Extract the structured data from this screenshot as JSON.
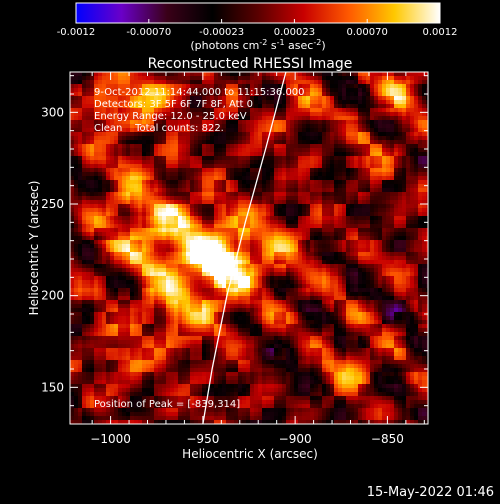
{
  "colorbar": {
    "ticks": [
      "-0.0012",
      "-0.00070",
      "-0.00023",
      "0.00023",
      "0.00070",
      "0.0012"
    ],
    "unit_label_parts": [
      "(photons cm",
      "-2",
      " s",
      "-1",
      " asec",
      "-2",
      ")"
    ],
    "colors": [
      "#0000ff",
      "#6a00c8",
      "#3a0018",
      "#000000",
      "#5a0000",
      "#c80000",
      "#ff5a00",
      "#ffc800",
      "#ffffff"
    ]
  },
  "footer": {
    "timestamp": "15-May-2022 01:46"
  },
  "chart_data": {
    "type": "heatmap",
    "title": "Reconstructed RHESSI Image",
    "xlabel": "Heliocentric X (arcsec)",
    "ylabel": "Heliocentric Y (arcsec)",
    "xlim": [
      -1022,
      -828
    ],
    "ylim": [
      130,
      322
    ],
    "xticks": [
      {
        "value": -1000,
        "label": "−1000"
      },
      {
        "value": -950,
        "label": "−950"
      },
      {
        "value": -900,
        "label": "−900"
      },
      {
        "value": -850,
        "label": "−850"
      }
    ],
    "yticks": [
      {
        "value": 150,
        "label": "150"
      },
      {
        "value": 200,
        "label": "200"
      },
      {
        "value": 250,
        "label": "250"
      },
      {
        "value": 300,
        "label": "300"
      }
    ],
    "value_range": [
      -0.0012,
      0.0012
    ],
    "annotations": [
      "9-Oct-2012 11:14:44.000 to 11:15:36.000",
      "Detectors: 3F 5F 6F 7F 8F, Att 0",
      "Energy Range: 12.0 - 25.0 keV",
      "Clean    Total counts: 822."
    ],
    "peak_label": "Position of Peak = [-839,314]",
    "peak": {
      "x": -839,
      "y": 314
    },
    "limb_curve": [
      [
        -950,
        130
      ],
      [
        -945,
        160
      ],
      [
        -937,
        200
      ],
      [
        -927,
        240
      ],
      [
        -916,
        280
      ],
      [
        -905,
        322
      ]
    ]
  }
}
